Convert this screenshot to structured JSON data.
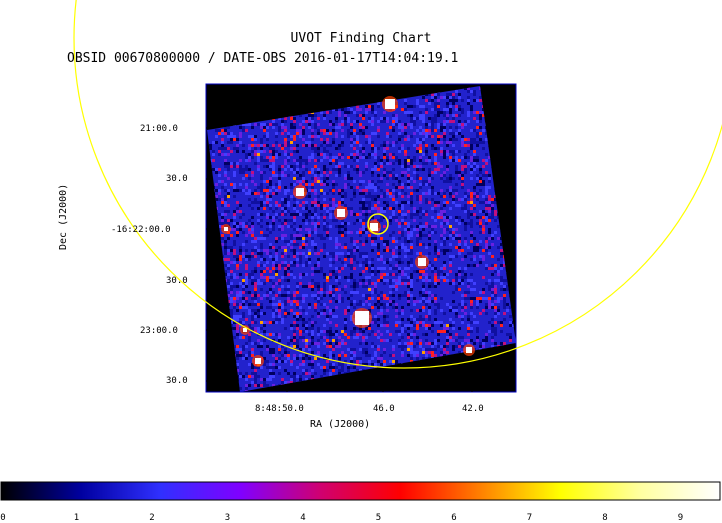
{
  "header": {
    "title": "UVOT Finding Chart",
    "subtitle": "OBSID 00670800000 / DATE-OBS 2016-01-17T14:04:19.1"
  },
  "axes": {
    "xlabel": "RA (J2000)",
    "ylabel": "Dec (J2000)",
    "x_ticks": [
      "8:48:50.0",
      "46.0",
      "42.0"
    ],
    "y_ticks": [
      "21:00.0",
      "30.0",
      "-16:22:00.0",
      "30.0",
      "23:00.0",
      "30.0"
    ]
  },
  "colorbar": {
    "ticks": [
      "0",
      "1",
      "2",
      "3",
      "4",
      "5",
      "6",
      "7",
      "8",
      "9"
    ],
    "colors": [
      "#000000",
      "#0000a0",
      "#3030ff",
      "#8000ff",
      "#d00070",
      "#ff0000",
      "#ff8000",
      "#ffff00",
      "#ffffa0",
      "#ffffff"
    ]
  },
  "overlay": {
    "large_circle_color": "#ffff00",
    "small_circle_color": "#ffff00",
    "image_border_color": "#0000c0",
    "background_noise_color": "#2222cc"
  }
}
